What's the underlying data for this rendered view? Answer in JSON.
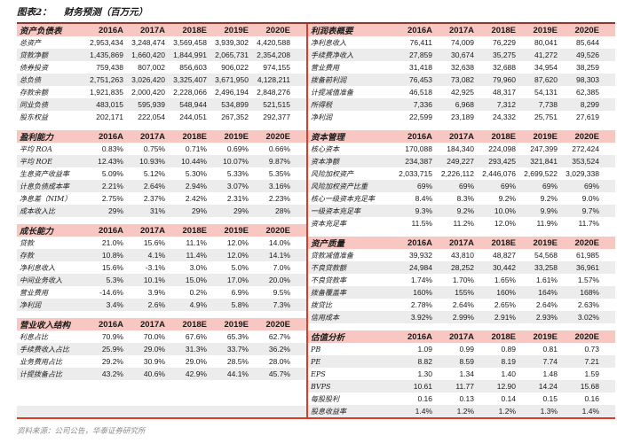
{
  "title": {
    "label": "图表2：",
    "text": "财务预测（百万元）"
  },
  "years": [
    "2016A",
    "2017A",
    "2018E",
    "2019E",
    "2020E"
  ],
  "colors": {
    "header_background": "#f8c7c2",
    "stripe_background": "#ececec",
    "top_border": "#96352b",
    "bottom_border": "#e03a26",
    "divider": "#e03a26"
  },
  "left_sections": [
    {
      "name": "资产负债表",
      "rows": [
        {
          "label": "总资产",
          "values": [
            "2,953,434",
            "3,248,474",
            "3,569,458",
            "3,939,302",
            "4,420,588"
          ]
        },
        {
          "label": "贷款净额",
          "values": [
            "1,435,869",
            "1,660,420",
            "1,844,991",
            "2,065,731",
            "2,354,208"
          ]
        },
        {
          "label": "债券投资",
          "values": [
            "759,438",
            "807,002",
            "856,603",
            "906,022",
            "974,155"
          ]
        },
        {
          "label": "总负债",
          "values": [
            "2,751,263",
            "3,026,420",
            "3,325,407",
            "3,671,950",
            "4,128,211"
          ]
        },
        {
          "label": "存款余额",
          "values": [
            "1,921,835",
            "2,000,420",
            "2,228,066",
            "2,496,194",
            "2,848,276"
          ]
        },
        {
          "label": "同业负债",
          "values": [
            "483,015",
            "595,939",
            "548,944",
            "534,899",
            "521,515"
          ]
        },
        {
          "label": "股东权益",
          "values": [
            "202,171",
            "222,054",
            "244,051",
            "267,352",
            "292,377"
          ]
        }
      ]
    },
    {
      "name": "盈利能力",
      "rows": [
        {
          "label": "平均 ROA",
          "values": [
            "0.83%",
            "0.75%",
            "0.71%",
            "0.69%",
            "0.66%"
          ]
        },
        {
          "label": "平均 ROE",
          "values": [
            "12.43%",
            "10.93%",
            "10.44%",
            "10.07%",
            "9.87%"
          ]
        },
        {
          "label": "生息资产收益率",
          "values": [
            "5.09%",
            "5.12%",
            "5.30%",
            "5.33%",
            "5.35%"
          ]
        },
        {
          "label": "计息负债成本率",
          "values": [
            "2.21%",
            "2.64%",
            "2.94%",
            "3.07%",
            "3.16%"
          ]
        },
        {
          "label": "净息差（NIM）",
          "values": [
            "2.75%",
            "2.37%",
            "2.42%",
            "2.31%",
            "2.23%"
          ]
        },
        {
          "label": "成本收入比",
          "values": [
            "29%",
            "31%",
            "29%",
            "29%",
            "28%"
          ]
        }
      ]
    },
    {
      "name": "成长能力",
      "rows": [
        {
          "label": "贷款",
          "values": [
            "21.0%",
            "15.6%",
            "11.1%",
            "12.0%",
            "14.0%"
          ]
        },
        {
          "label": "存款",
          "values": [
            "10.8%",
            "4.1%",
            "11.4%",
            "12.0%",
            "14.1%"
          ]
        },
        {
          "label": "净利息收入",
          "values": [
            "15.6%",
            "-3.1%",
            "3.0%",
            "5.0%",
            "7.0%"
          ]
        },
        {
          "label": "中间业务收入",
          "values": [
            "5.3%",
            "10.1%",
            "15.0%",
            "17.0%",
            "20.0%"
          ]
        },
        {
          "label": "营业费用",
          "values": [
            "-14.6%",
            "3.9%",
            "0.2%",
            "6.9%",
            "9.5%"
          ]
        },
        {
          "label": "净利润",
          "values": [
            "3.4%",
            "2.6%",
            "4.9%",
            "5.8%",
            "7.3%"
          ]
        }
      ]
    },
    {
      "name": "营业收入结构",
      "rows": [
        {
          "label": "利息占比",
          "values": [
            "70.9%",
            "70.0%",
            "67.6%",
            "65.3%",
            "62.7%"
          ]
        },
        {
          "label": "手续费收入占比",
          "values": [
            "25.9%",
            "29.0%",
            "31.3%",
            "33.7%",
            "36.2%"
          ]
        },
        {
          "label": "业务费用占比",
          "values": [
            "29.2%",
            "30.9%",
            "29.0%",
            "28.5%",
            "28.0%"
          ]
        },
        {
          "label": "计提拨备占比",
          "values": [
            "43.2%",
            "40.6%",
            "42.9%",
            "44.1%",
            "45.7%"
          ]
        }
      ]
    }
  ],
  "right_sections": [
    {
      "name": "利润表概要",
      "rows": [
        {
          "label": "净利息收入",
          "values": [
            "76,411",
            "74,009",
            "76,229",
            "80,041",
            "85,644"
          ]
        },
        {
          "label": "手续费净收入",
          "values": [
            "27,859",
            "30,674",
            "35,275",
            "41,272",
            "49,526"
          ]
        },
        {
          "label": "营业费用",
          "values": [
            "31,418",
            "32,638",
            "32,688",
            "34,954",
            "38,259"
          ]
        },
        {
          "label": "拨备前利润",
          "values": [
            "76,453",
            "73,082",
            "79,960",
            "87,620",
            "98,303"
          ]
        },
        {
          "label": "计提减值准备",
          "values": [
            "46,518",
            "42,925",
            "48,317",
            "54,131",
            "62,385"
          ]
        },
        {
          "label": "所得税",
          "values": [
            "7,336",
            "6,968",
            "7,312",
            "7,738",
            "8,299"
          ]
        },
        {
          "label": "净利润",
          "values": [
            "22,599",
            "23,189",
            "24,332",
            "25,751",
            "27,619"
          ]
        }
      ]
    },
    {
      "name": "资本管理",
      "rows": [
        {
          "label": "核心资本",
          "values": [
            "170,088",
            "184,340",
            "224,098",
            "247,399",
            "272,424"
          ]
        },
        {
          "label": "资本净额",
          "values": [
            "234,387",
            "249,227",
            "293,425",
            "321,841",
            "353,524"
          ]
        },
        {
          "label": "风险加权资产",
          "values": [
            "2,033,715",
            "2,226,112",
            "2,446,076",
            "2,699,522",
            "3,029,338"
          ]
        },
        {
          "label": "风险加权资产比重",
          "values": [
            "69%",
            "69%",
            "69%",
            "69%",
            "69%"
          ]
        },
        {
          "label": "核心一级资本充足率",
          "values": [
            "8.4%",
            "8.3%",
            "9.2%",
            "9.2%",
            "9.0%"
          ]
        },
        {
          "label": "一级资本充足率",
          "values": [
            "9.3%",
            "9.2%",
            "10.0%",
            "9.9%",
            "9.7%"
          ]
        },
        {
          "label": "资本充足率",
          "values": [
            "11.5%",
            "11.2%",
            "12.0%",
            "11.9%",
            "11.7%"
          ]
        }
      ]
    },
    {
      "name": "资产质量",
      "rows": [
        {
          "label": "贷款减值准备",
          "values": [
            "39,932",
            "43,810",
            "48,827",
            "54,568",
            "61,985"
          ]
        },
        {
          "label": "不良贷款额",
          "values": [
            "24,984",
            "28,252",
            "30,442",
            "33,258",
            "36,961"
          ]
        },
        {
          "label": "不良贷款率",
          "values": [
            "1.74%",
            "1.70%",
            "1.65%",
            "1.61%",
            "1.57%"
          ]
        },
        {
          "label": "拨备覆盖率",
          "values": [
            "160%",
            "155%",
            "160%",
            "164%",
            "168%"
          ]
        },
        {
          "label": "拨贷比",
          "values": [
            "2.78%",
            "2.64%",
            "2.65%",
            "2.64%",
            "2.63%"
          ]
        },
        {
          "label": "信用成本",
          "values": [
            "3.92%",
            "2.99%",
            "2.91%",
            "2.93%",
            "3.02%"
          ]
        }
      ]
    },
    {
      "name": "估值分析",
      "rows": [
        {
          "label": "PB",
          "values": [
            "1.09",
            "0.99",
            "0.89",
            "0.81",
            "0.73"
          ]
        },
        {
          "label": "PE",
          "values": [
            "8.82",
            "8.59",
            "8.19",
            "7.74",
            "7.21"
          ]
        },
        {
          "label": "EPS",
          "values": [
            "1.30",
            "1.34",
            "1.40",
            "1.48",
            "1.59"
          ]
        },
        {
          "label": "BVPS",
          "values": [
            "10.61",
            "11.77",
            "12.90",
            "14.24",
            "15.68"
          ]
        },
        {
          "label": "每股股利",
          "values": [
            "0.16",
            "0.13",
            "0.14",
            "0.15",
            "0.16"
          ]
        },
        {
          "label": "股息收益率",
          "values": [
            "1.4%",
            "1.2%",
            "1.2%",
            "1.3%",
            "1.4%"
          ]
        }
      ]
    }
  ],
  "source": "资料来源：公司公告，华泰证券研究所"
}
